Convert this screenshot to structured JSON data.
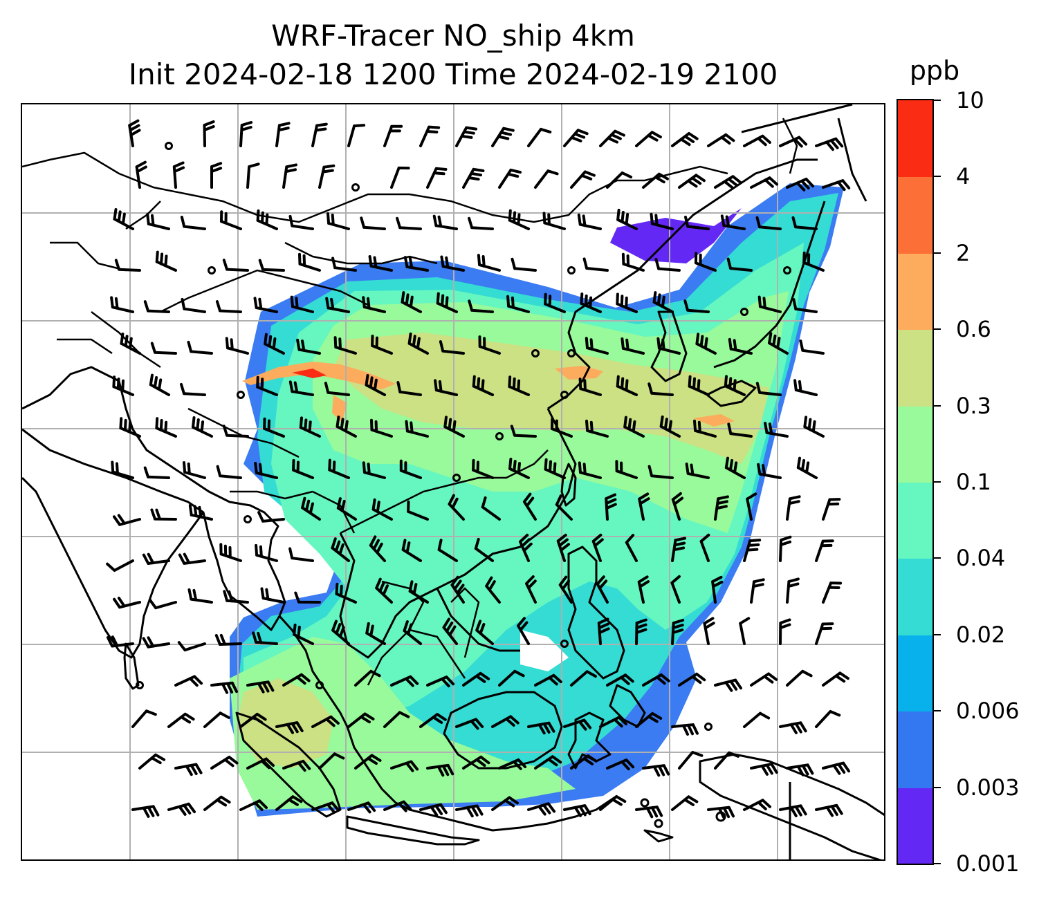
{
  "title": {
    "line1": "WRF-Tracer NO_ship 4km",
    "line2": "Init 2024-02-18 1200 Time 2024-02-19 2100"
  },
  "colorbar": {
    "unit": "ppb",
    "levels": [
      "0.001",
      "0.003",
      "0.006",
      "0.02",
      "0.04",
      "0.1",
      "0.3",
      "0.6",
      "2",
      "4",
      "10"
    ],
    "colors": [
      "#6428f5",
      "#3378f0",
      "#08b0ec",
      "#34dcd4",
      "#66f6c0",
      "#98fa9a",
      "#cce084",
      "#fcac5c",
      "#fc7038",
      "#fa2c14"
    ]
  },
  "map": {
    "projection": "Lambert conformal (East / Southeast Asia)",
    "field": "NO_ship tracer concentration",
    "overlay": "wind barbs",
    "gridlines": true,
    "coastlines": true,
    "country_borders": true,
    "icons": {
      "wind_barb": "wind-barb-icon",
      "calm_wind": "calm-wind-circle-icon"
    }
  }
}
